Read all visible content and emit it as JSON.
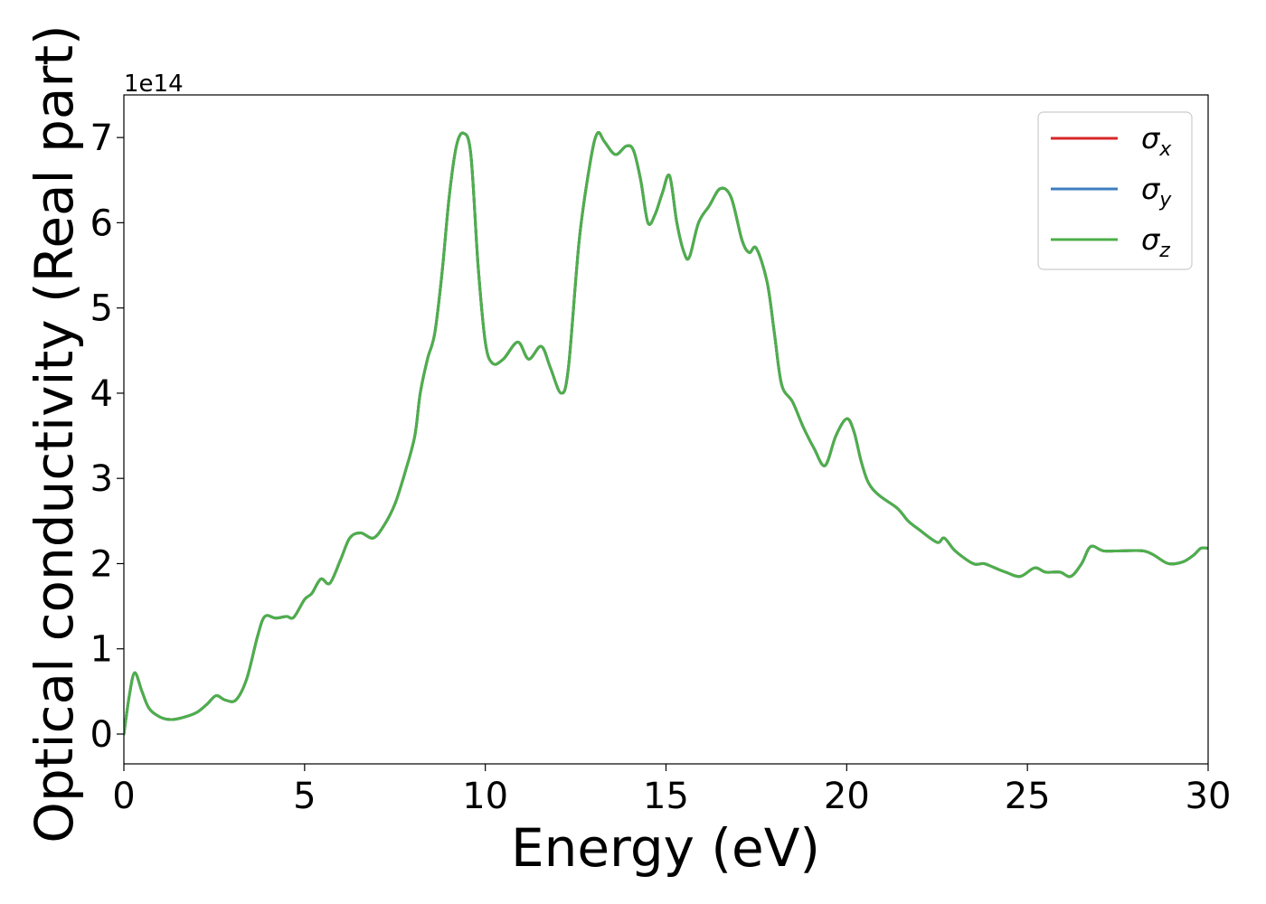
{
  "chart_data": {
    "type": "line",
    "title": "",
    "xlabel": "Energy (eV)",
    "ylabel": "Optical conductivity (Real part)",
    "y_offset_label": "1e14",
    "xlim": [
      0,
      30
    ],
    "ylim": [
      -0.35,
      7.5
    ],
    "x_ticks": [
      0,
      5,
      10,
      15,
      20,
      25,
      30
    ],
    "x_tick_labels": [
      "0",
      "5",
      "10",
      "15",
      "20",
      "25",
      "30"
    ],
    "y_ticks": [
      0,
      1,
      2,
      3,
      4,
      5,
      6,
      7
    ],
    "y_tick_labels": [
      "0",
      "1",
      "2",
      "3",
      "4",
      "5",
      "6",
      "7"
    ],
    "grid": false,
    "legend_position": "top-right",
    "x": [
      0,
      0.15,
      0.3,
      0.5,
      0.7,
      1.0,
      1.3,
      1.6,
      2.0,
      2.3,
      2.55,
      2.8,
      3.1,
      3.4,
      3.7,
      3.9,
      4.2,
      4.5,
      4.7,
      5.0,
      5.2,
      5.45,
      5.7,
      6.0,
      6.25,
      6.55,
      6.9,
      7.2,
      7.5,
      7.8,
      8.05,
      8.2,
      8.4,
      8.6,
      8.8,
      9.0,
      9.2,
      9.4,
      9.6,
      9.8,
      10.0,
      10.2,
      10.5,
      10.9,
      11.2,
      11.55,
      11.8,
      12.1,
      12.3,
      12.6,
      12.9,
      13.1,
      13.3,
      13.6,
      13.9,
      14.1,
      14.3,
      14.5,
      14.7,
      14.9,
      15.1,
      15.3,
      15.5,
      15.65,
      15.9,
      16.2,
      16.5,
      16.8,
      17.1,
      17.3,
      17.5,
      17.8,
      18.0,
      18.2,
      18.5,
      18.8,
      19.1,
      19.4,
      19.7,
      20.0,
      20.2,
      20.4,
      20.6,
      20.9,
      21.4,
      21.7,
      22.0,
      22.5,
      22.7,
      23.0,
      23.5,
      23.8,
      24.1,
      24.4,
      24.8,
      25.2,
      25.5,
      25.9,
      26.2,
      26.5,
      26.75,
      27.1,
      27.6,
      28.2,
      28.5,
      28.9,
      29.3,
      29.6,
      29.8,
      30.0
    ],
    "series": [
      {
        "name": "σx",
        "color": "#d62728",
        "y": [
          0.0,
          0.45,
          0.72,
          0.5,
          0.3,
          0.2,
          0.17,
          0.19,
          0.25,
          0.35,
          0.45,
          0.4,
          0.4,
          0.65,
          1.15,
          1.38,
          1.36,
          1.38,
          1.37,
          1.58,
          1.65,
          1.82,
          1.77,
          2.05,
          2.3,
          2.36,
          2.3,
          2.45,
          2.7,
          3.1,
          3.5,
          4.0,
          4.4,
          4.7,
          5.4,
          6.3,
          6.9,
          7.05,
          6.8,
          5.5,
          4.6,
          4.35,
          4.4,
          4.6,
          4.4,
          4.55,
          4.3,
          4.0,
          4.3,
          5.8,
          6.7,
          7.05,
          6.95,
          6.8,
          6.9,
          6.85,
          6.5,
          6.0,
          6.1,
          6.35,
          6.55,
          6.0,
          5.65,
          5.6,
          6.0,
          6.2,
          6.4,
          6.3,
          5.8,
          5.65,
          5.7,
          5.3,
          4.7,
          4.1,
          3.9,
          3.6,
          3.35,
          3.15,
          3.5,
          3.7,
          3.55,
          3.2,
          2.95,
          2.8,
          2.65,
          2.5,
          2.4,
          2.25,
          2.3,
          2.15,
          2.0,
          2.0,
          1.95,
          1.9,
          1.85,
          1.95,
          1.9,
          1.9,
          1.85,
          2.0,
          2.2,
          2.15,
          2.15,
          2.15,
          2.1,
          2.0,
          2.02,
          2.1,
          2.18,
          2.18
        ]
      },
      {
        "name": "σy",
        "color": "#3c7ec0",
        "y": [
          0.0,
          0.45,
          0.72,
          0.5,
          0.3,
          0.2,
          0.17,
          0.19,
          0.25,
          0.35,
          0.45,
          0.4,
          0.4,
          0.65,
          1.15,
          1.38,
          1.36,
          1.38,
          1.37,
          1.58,
          1.65,
          1.82,
          1.77,
          2.05,
          2.3,
          2.36,
          2.3,
          2.45,
          2.7,
          3.1,
          3.5,
          4.0,
          4.4,
          4.7,
          5.4,
          6.3,
          6.9,
          7.05,
          6.8,
          5.5,
          4.6,
          4.35,
          4.4,
          4.6,
          4.4,
          4.55,
          4.3,
          4.0,
          4.3,
          5.8,
          6.7,
          7.05,
          6.95,
          6.8,
          6.9,
          6.85,
          6.5,
          6.0,
          6.1,
          6.35,
          6.55,
          6.0,
          5.65,
          5.6,
          6.0,
          6.2,
          6.4,
          6.3,
          5.8,
          5.65,
          5.7,
          5.3,
          4.7,
          4.1,
          3.9,
          3.6,
          3.35,
          3.15,
          3.5,
          3.7,
          3.55,
          3.2,
          2.95,
          2.8,
          2.65,
          2.5,
          2.4,
          2.25,
          2.3,
          2.15,
          2.0,
          2.0,
          1.95,
          1.9,
          1.85,
          1.95,
          1.9,
          1.9,
          1.85,
          2.0,
          2.2,
          2.15,
          2.15,
          2.15,
          2.1,
          2.0,
          2.02,
          2.1,
          2.18,
          2.18
        ]
      },
      {
        "name": "σz",
        "color": "#4daf4a",
        "y": [
          0.0,
          0.45,
          0.72,
          0.5,
          0.3,
          0.2,
          0.17,
          0.19,
          0.25,
          0.35,
          0.45,
          0.4,
          0.4,
          0.65,
          1.15,
          1.38,
          1.36,
          1.38,
          1.37,
          1.58,
          1.65,
          1.82,
          1.77,
          2.05,
          2.3,
          2.36,
          2.3,
          2.45,
          2.7,
          3.1,
          3.5,
          4.0,
          4.4,
          4.7,
          5.4,
          6.3,
          6.9,
          7.05,
          6.8,
          5.5,
          4.6,
          4.35,
          4.4,
          4.6,
          4.4,
          4.55,
          4.3,
          4.0,
          4.3,
          5.8,
          6.7,
          7.05,
          6.95,
          6.8,
          6.9,
          6.85,
          6.5,
          6.0,
          6.1,
          6.35,
          6.55,
          6.0,
          5.65,
          5.6,
          6.0,
          6.2,
          6.4,
          6.3,
          5.8,
          5.65,
          5.7,
          5.3,
          4.7,
          4.1,
          3.9,
          3.6,
          3.35,
          3.15,
          3.5,
          3.7,
          3.55,
          3.2,
          2.95,
          2.8,
          2.65,
          2.5,
          2.4,
          2.25,
          2.3,
          2.15,
          2.0,
          2.0,
          1.95,
          1.9,
          1.85,
          1.95,
          1.9,
          1.9,
          1.85,
          2.0,
          2.2,
          2.15,
          2.15,
          2.15,
          2.1,
          2.0,
          2.02,
          2.1,
          2.18,
          2.18
        ]
      }
    ],
    "legend": [
      {
        "symbol": "σ",
        "subscript": "x",
        "color": "#d62728"
      },
      {
        "symbol": "σ",
        "subscript": "y",
        "color": "#3c7ec0"
      },
      {
        "symbol": "σ",
        "subscript": "z",
        "color": "#4daf4a"
      }
    ]
  }
}
